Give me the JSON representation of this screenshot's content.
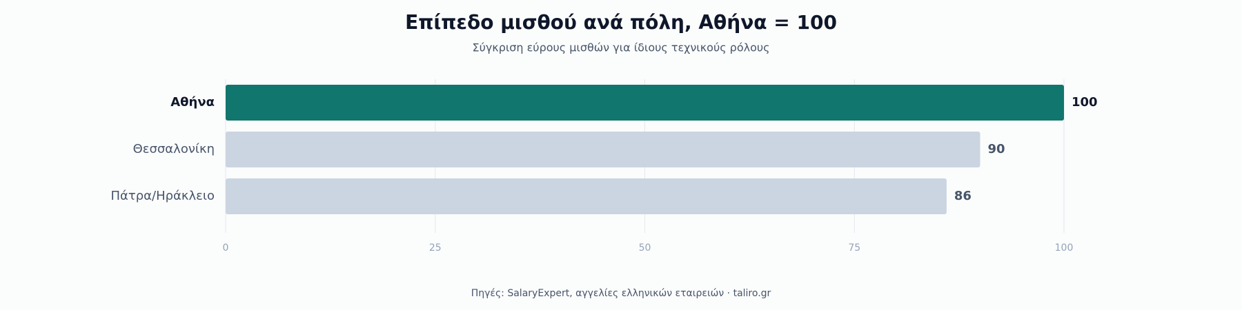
{
  "chart_data": {
    "type": "barh",
    "title": "Επίπεδο μισθού ανά πόλη, Αθήνα = 100",
    "subtitle": "Σύγκριση εύρους μισθών για ίδιους τεχνικούς ρόλους",
    "categories": [
      "Αθήνα",
      "Θεσσαλονίκη",
      "Πάτρα/Ηράκλειο"
    ],
    "values": [
      100,
      90,
      86
    ],
    "colors": [
      "#11766e",
      "#cbd5e1",
      "#cbd5e1"
    ],
    "xlim": [
      0,
      100
    ],
    "xticks": [
      0,
      25,
      50,
      75,
      100
    ],
    "grid": true,
    "source": "Πηγές: SalaryExpert, αγγελίες ελληνικών εταιρειών · taliro.gr"
  }
}
